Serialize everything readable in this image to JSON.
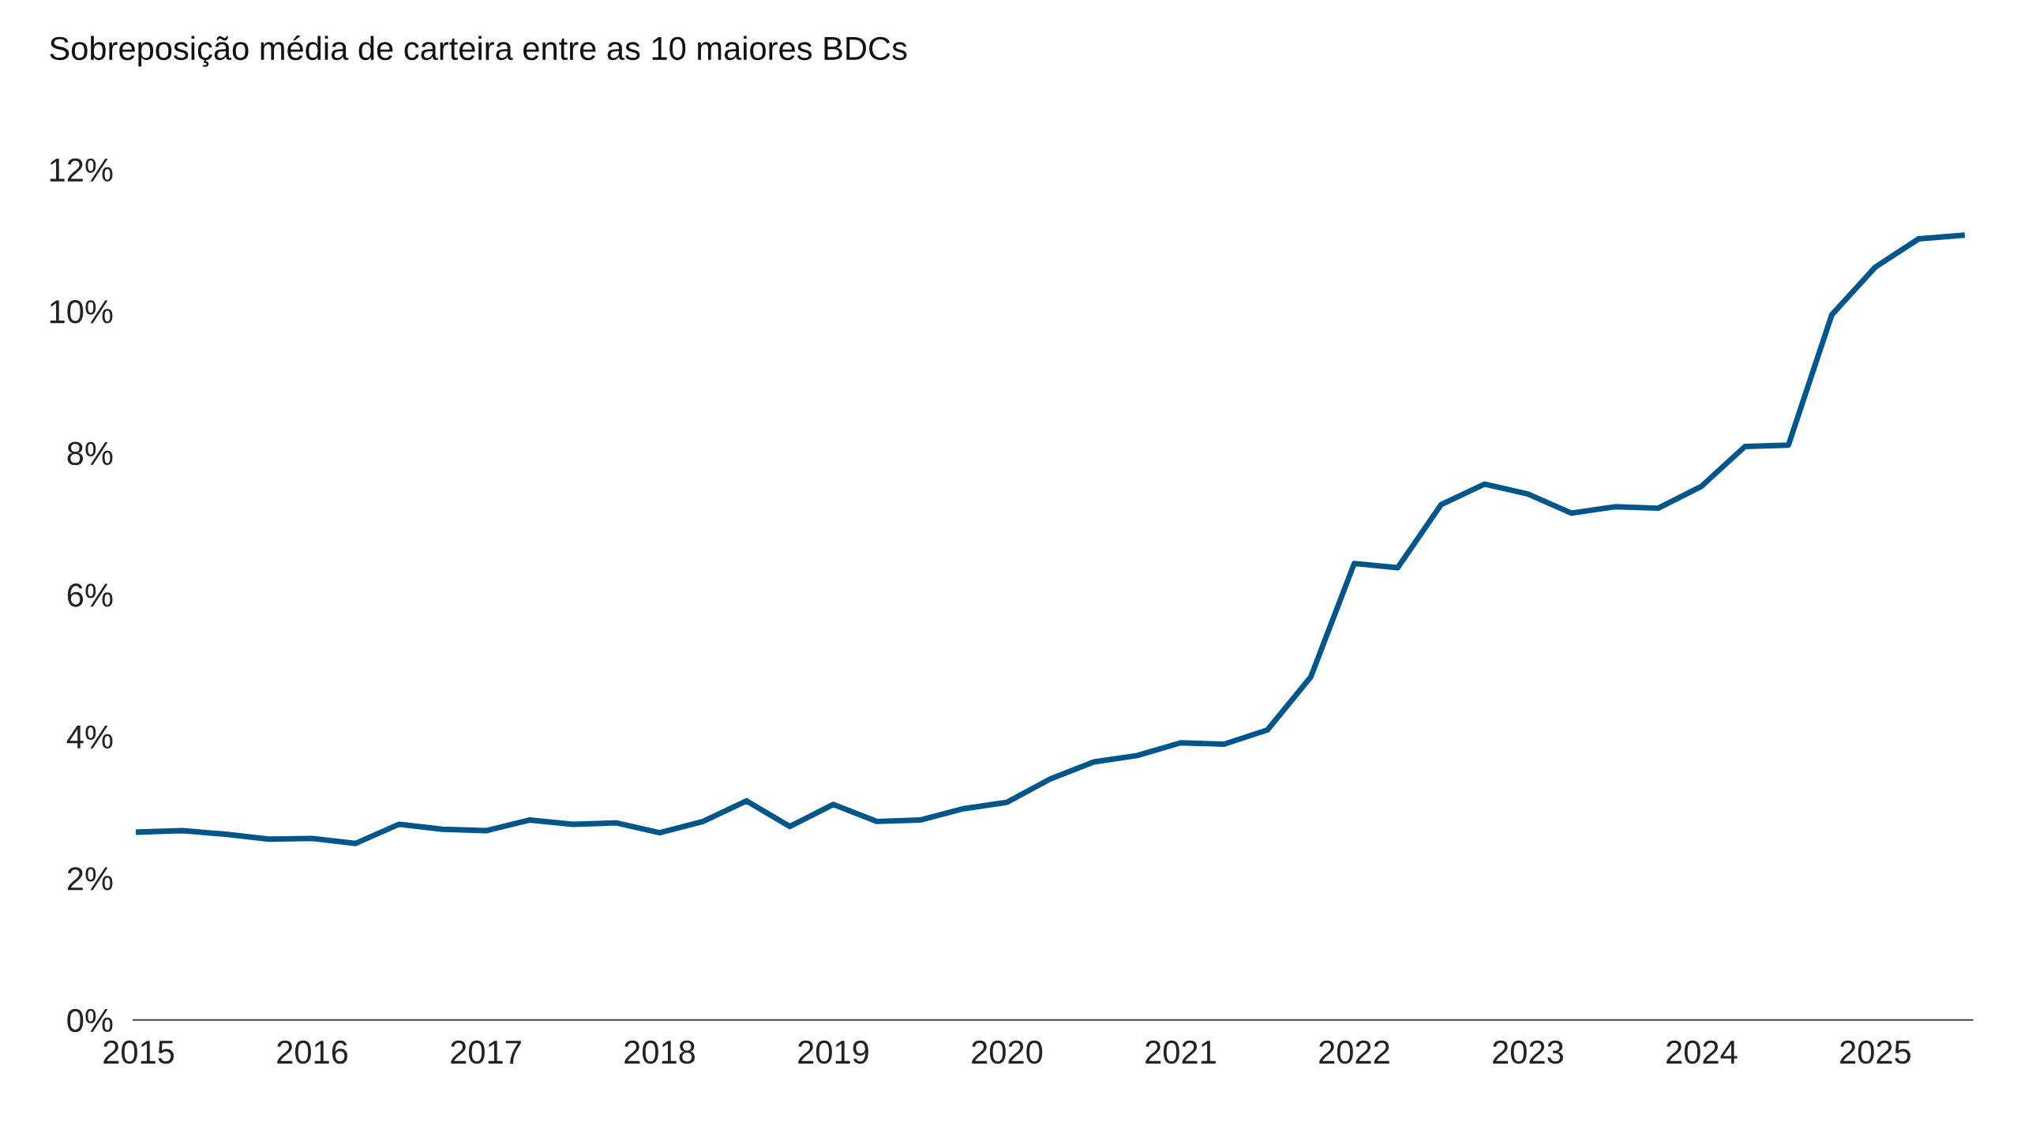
{
  "chart_data": {
    "type": "line",
    "title": "Sobreposição média de carteira entre as 10 maiores BDCs",
    "x": [
      2015.0,
      2015.25,
      2015.5,
      2015.75,
      2016.0,
      2016.25,
      2016.5,
      2016.75,
      2017.0,
      2017.25,
      2017.5,
      2017.75,
      2018.0,
      2018.25,
      2018.5,
      2018.75,
      2019.0,
      2019.25,
      2019.5,
      2019.75,
      2020.0,
      2020.25,
      2020.5,
      2020.75,
      2021.0,
      2021.25,
      2021.5,
      2021.75,
      2022.0,
      2022.25,
      2022.5,
      2022.75,
      2023.0,
      2023.25,
      2023.5,
      2023.75,
      2024.0,
      2024.25,
      2024.5,
      2024.75,
      2025.0,
      2025.25,
      2025.5
    ],
    "series": [
      {
        "color": "#00558a",
        "values": [
          2.65,
          2.67,
          2.62,
          2.55,
          2.56,
          2.49,
          2.76,
          2.69,
          2.67,
          2.82,
          2.76,
          2.78,
          2.64,
          2.8,
          3.09,
          2.73,
          3.04,
          2.8,
          2.82,
          2.98,
          3.07,
          3.4,
          3.64,
          3.73,
          3.91,
          3.89,
          4.09,
          4.84,
          6.44,
          6.38,
          7.27,
          7.56,
          7.42,
          7.15,
          7.24,
          7.22,
          7.53,
          8.09,
          8.11,
          9.95,
          10.62,
          11.02,
          11.07
        ]
      }
    ],
    "xlim": [
      2014.97,
      2025.56
    ],
    "xticks": [
      2015,
      2016,
      2017,
      2018,
      2019,
      2020,
      2021,
      2022,
      2023,
      2024,
      2025
    ],
    "ylim": [
      0,
      12
    ],
    "yticks": [
      {
        "value": 0,
        "label": "0%"
      },
      {
        "value": 2,
        "label": "2%"
      },
      {
        "value": 4,
        "label": "4%"
      },
      {
        "value": 6,
        "label": "6%"
      },
      {
        "value": 8,
        "label": "8%"
      },
      {
        "value": 10,
        "label": "10%"
      },
      {
        "value": 12,
        "label": "12%"
      }
    ],
    "grid": false,
    "legend": false,
    "marker": "none",
    "line_style": "solid"
  }
}
